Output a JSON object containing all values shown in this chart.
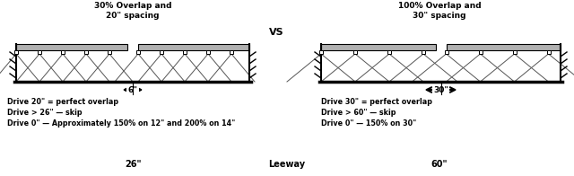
{
  "bg_color": "#ffffff",
  "left_title": "30% Overlap and\n20\" spacing",
  "right_title": "100% Overlap and\n30\" spacing",
  "vs_text": "VS",
  "left_bottom_label": "26\"",
  "right_bottom_label": "60\"",
  "center_bottom_label": "Leeway",
  "left_arrow_label": "6\"",
  "right_arrow_label": "30\"",
  "left_notes": "Drive 20\" = perfect overlap\nDrive > 26\" — skip\nDrive 0\" — Approximately 150% on 12\" and 200% on 14\"",
  "right_notes": "Drive 30\" = perfect overlap\nDrive > 60\" — skip\nDrive 0\" — 150% on 30\""
}
